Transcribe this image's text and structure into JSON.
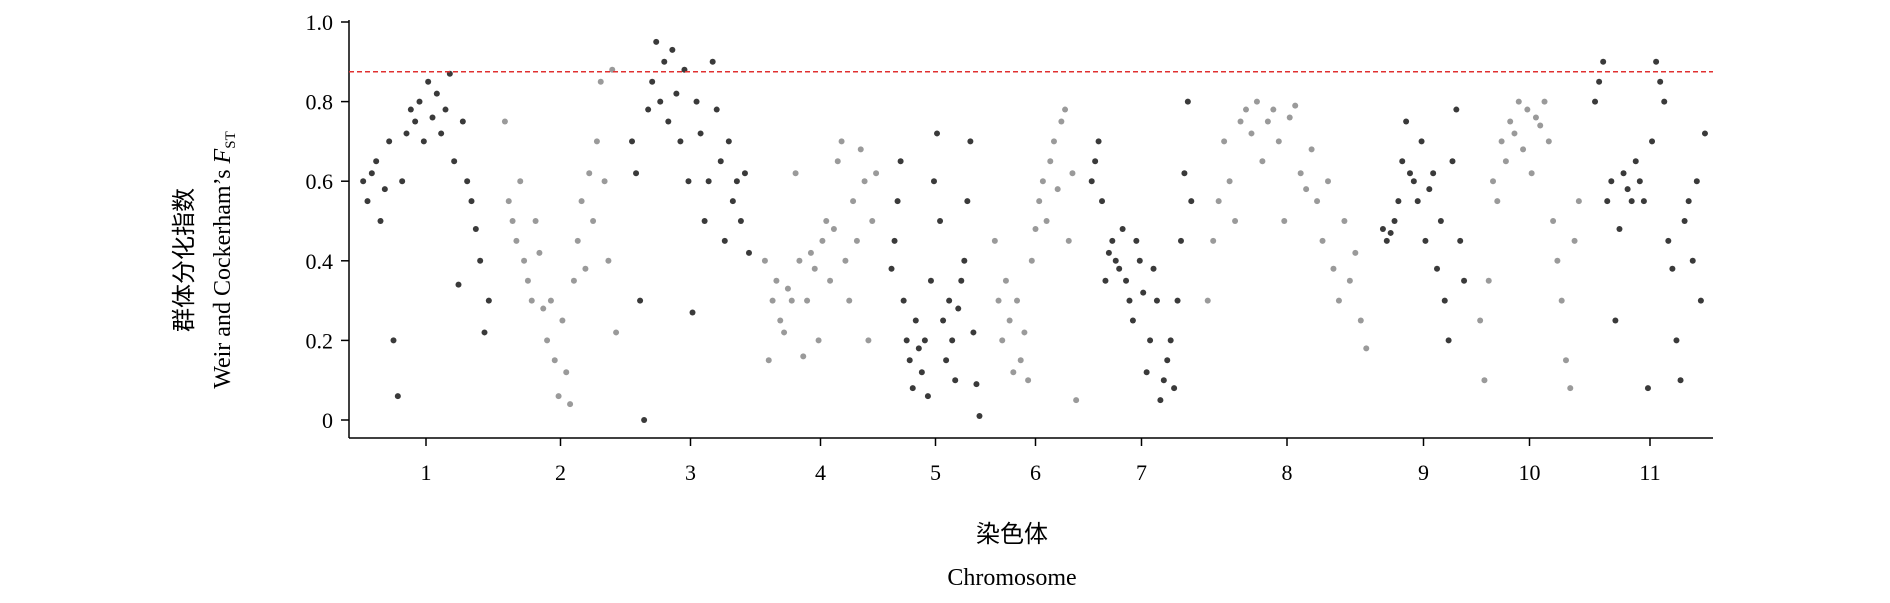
{
  "chart_data": {
    "type": "scatter",
    "y_label_cn": "群体分化指数",
    "y_label_en": {
      "text": "Weir and Cockerham’s",
      "symbol": "F",
      "subscript": "ST"
    },
    "x_label_cn": "染色体",
    "x_label_en": "Chromosome",
    "categories": [
      "1",
      "2",
      "3",
      "4",
      "5",
      "6",
      "7",
      "8",
      "9",
      "10",
      "11"
    ],
    "series": [
      {
        "color": "#3a3a3a",
        "values": [
          0.6,
          0.55,
          0.62,
          0.65,
          0.5,
          0.58,
          0.7,
          0.2,
          0.06,
          0.6,
          0.72,
          0.78,
          0.75,
          0.8,
          0.7,
          0.85,
          0.76,
          0.82,
          0.72,
          0.78,
          0.87,
          0.65,
          0.34,
          0.75,
          0.6,
          0.55,
          0.48,
          0.4,
          0.22,
          0.3
        ]
      },
      {
        "color": "#9a9a9a",
        "values": [
          0.75,
          0.55,
          0.5,
          0.45,
          0.6,
          0.4,
          0.35,
          0.3,
          0.5,
          0.42,
          0.28,
          0.2,
          0.3,
          0.15,
          0.06,
          0.25,
          0.12,
          0.04,
          0.35,
          0.45,
          0.55,
          0.38,
          0.62,
          0.5,
          0.7,
          0.85,
          0.6,
          0.4,
          0.88,
          0.22
        ]
      },
      {
        "color": "#3a3a3a",
        "values": [
          0.7,
          0.62,
          0.3,
          0.0,
          0.78,
          0.85,
          0.95,
          0.8,
          0.9,
          0.75,
          0.93,
          0.82,
          0.7,
          0.88,
          0.6,
          0.27,
          0.8,
          0.72,
          0.5,
          0.6,
          0.9,
          0.78,
          0.65,
          0.45,
          0.7,
          0.55,
          0.6,
          0.5,
          0.62,
          0.42
        ]
      },
      {
        "color": "#9a9a9a",
        "values": [
          0.4,
          0.15,
          0.3,
          0.35,
          0.25,
          0.22,
          0.33,
          0.3,
          0.62,
          0.4,
          0.16,
          0.3,
          0.42,
          0.38,
          0.2,
          0.45,
          0.5,
          0.35,
          0.48,
          0.65,
          0.7,
          0.4,
          0.3,
          0.55,
          0.45,
          0.68,
          0.6,
          0.2,
          0.5,
          0.62
        ]
      },
      {
        "color": "#3a3a3a",
        "values": [
          0.38,
          0.45,
          0.55,
          0.65,
          0.3,
          0.2,
          0.15,
          0.08,
          0.25,
          0.18,
          0.12,
          0.2,
          0.06,
          0.35,
          0.6,
          0.72,
          0.5,
          0.25,
          0.15,
          0.3,
          0.2,
          0.1,
          0.28,
          0.35,
          0.4,
          0.55,
          0.7,
          0.22,
          0.09,
          0.01
        ]
      },
      {
        "color": "#9a9a9a",
        "values": [
          0.45,
          0.3,
          0.2,
          0.35,
          0.25,
          0.12,
          0.3,
          0.15,
          0.22,
          0.1,
          0.4,
          0.48,
          0.55,
          0.6,
          0.5,
          0.65,
          0.7,
          0.58,
          0.75,
          0.78,
          0.45,
          0.62,
          0.05
        ]
      },
      {
        "color": "#3a3a3a",
        "values": [
          0.6,
          0.65,
          0.7,
          0.55,
          0.35,
          0.42,
          0.45,
          0.4,
          0.38,
          0.48,
          0.35,
          0.3,
          0.25,
          0.45,
          0.4,
          0.32,
          0.12,
          0.2,
          0.38,
          0.3,
          0.05,
          0.1,
          0.15,
          0.2,
          0.08,
          0.3,
          0.45,
          0.62,
          0.8,
          0.55
        ]
      },
      {
        "color": "#9a9a9a",
        "values": [
          0.3,
          0.45,
          0.55,
          0.7,
          0.6,
          0.5,
          0.75,
          0.78,
          0.72,
          0.8,
          0.65,
          0.75,
          0.78,
          0.7,
          0.5,
          0.76,
          0.79,
          0.62,
          0.58,
          0.68,
          0.55,
          0.45,
          0.6,
          0.38,
          0.3,
          0.5,
          0.35,
          0.42,
          0.25,
          0.18
        ]
      },
      {
        "color": "#3a3a3a",
        "values": [
          0.48,
          0.45,
          0.47,
          0.5,
          0.55,
          0.65,
          0.75,
          0.62,
          0.6,
          0.55,
          0.7,
          0.45,
          0.58,
          0.62,
          0.38,
          0.5,
          0.3,
          0.2,
          0.65,
          0.78,
          0.45,
          0.35
        ]
      },
      {
        "color": "#9a9a9a",
        "values": [
          0.25,
          0.1,
          0.35,
          0.6,
          0.55,
          0.7,
          0.65,
          0.75,
          0.72,
          0.8,
          0.68,
          0.78,
          0.62,
          0.76,
          0.74,
          0.8,
          0.7,
          0.5,
          0.4,
          0.3,
          0.15,
          0.08,
          0.45,
          0.55
        ]
      },
      {
        "color": "#3a3a3a",
        "values": [
          0.8,
          0.85,
          0.9,
          0.55,
          0.6,
          0.25,
          0.48,
          0.62,
          0.58,
          0.55,
          0.65,
          0.6,
          0.55,
          0.08,
          0.7,
          0.9,
          0.85,
          0.8,
          0.45,
          0.38,
          0.2,
          0.1,
          0.5,
          0.55,
          0.4,
          0.6,
          0.3,
          0.72
        ]
      }
    ],
    "threshold": 0.875,
    "threshold_color": "#e03030",
    "ylim": [
      0,
      1
    ],
    "yticks": [
      0,
      0.2,
      0.4,
      0.6,
      0.8,
      {
        "value": 1,
        "label": "1.0"
      }
    ]
  }
}
